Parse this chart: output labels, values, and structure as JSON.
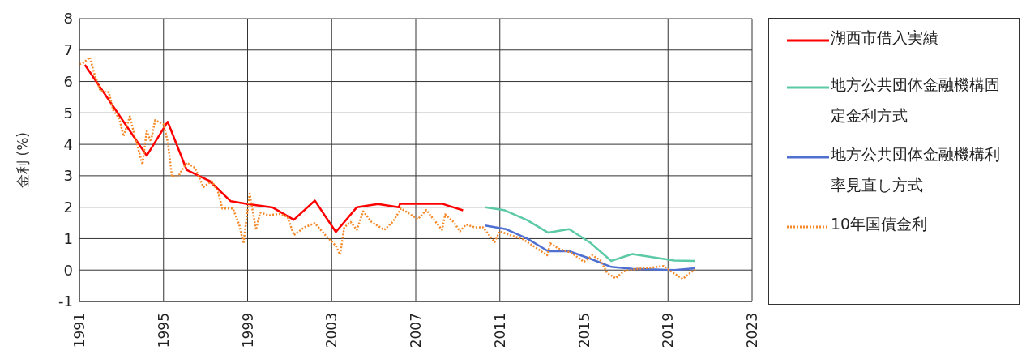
{
  "chart_data": {
    "type": "line",
    "ylabel": "金利 (%)",
    "xlim": [
      1991,
      2023
    ],
    "xticks": [
      1991,
      1995,
      1999,
      2003,
      2007,
      2011,
      2015,
      2019,
      2023
    ],
    "ylim": [
      -1,
      8
    ],
    "yticks": [
      -1,
      0,
      1,
      2,
      3,
      4,
      5,
      6,
      7,
      8
    ],
    "grid": true,
    "legend": "right",
    "marker": "none",
    "series": [
      {
        "name": "湖西市借入実績",
        "color": "#ff0000",
        "line_style": "solid",
        "x": [
          1991.26,
          1994.2,
          1995.2,
          1996.1,
          1997.2,
          1998.2,
          1999.0,
          2000.2,
          2001.2,
          2002.2,
          2003.2,
          2004.2,
          2005.2,
          2006.2,
          2006.25,
          2008.25,
          2009.25
        ],
        "values": [
          6.53,
          3.64,
          4.72,
          3.19,
          2.83,
          2.19,
          2.1,
          1.99,
          1.6,
          2.21,
          1.21,
          2.0,
          2.1,
          2.0,
          2.11,
          2.11,
          1.9
        ]
      },
      {
        "name": "地方公共団体金融機構固定金利方式",
        "color": "#5cc9a7",
        "line_style": "solid",
        "x": [
          2010.3,
          2011.2,
          2012.3,
          2013.3,
          2014.3,
          2015.3,
          2016.3,
          2017.3,
          2019.3,
          2020.3
        ],
        "values": [
          2.0,
          1.91,
          1.59,
          1.19,
          1.3,
          0.87,
          0.29,
          0.51,
          0.3,
          0.29
        ]
      },
      {
        "name": "地方公共団体金融機構利率見直し方式",
        "color": "#4f6fd1",
        "line_style": "solid",
        "x": [
          2010.3,
          2011.3,
          2012.3,
          2013.3,
          2014.3,
          2015.3,
          2016.3,
          2017.3,
          2019.3,
          2020.3
        ],
        "values": [
          1.42,
          1.3,
          1.0,
          0.6,
          0.6,
          0.36,
          0.1,
          0.04,
          0.0,
          0.06
        ]
      },
      {
        "name": "10年国債金利",
        "color": "#f58a2a",
        "line_style": "dotted",
        "x": [
          1991.0,
          1991.2,
          1991.5,
          1991.7,
          1992.0,
          1992.4,
          1992.6,
          1992.9,
          1993.1,
          1993.4,
          1993.6,
          1994.0,
          1994.2,
          1994.4,
          1994.6,
          1995.0,
          1995.2,
          1995.4,
          1995.7,
          1996.1,
          1996.5,
          1996.9,
          1997.3,
          1997.6,
          1997.8,
          1998.3,
          1998.6,
          1998.8,
          1999.1,
          1999.4,
          1999.6,
          2000.0,
          2000.5,
          2000.9,
          2001.2,
          2001.7,
          2002.2,
          2002.7,
          2003.2,
          2003.4,
          2003.6,
          2003.9,
          2004.2,
          2004.5,
          2004.9,
          2005.5,
          2005.9,
          2006.3,
          2006.7,
          2007.1,
          2007.5,
          2007.9,
          2008.25,
          2008.4,
          2008.8,
          2009.1,
          2009.4,
          2009.8,
          2010.2,
          2010.75,
          2011.0,
          2011.5,
          2012.1,
          2012.7,
          2013.25,
          2013.4,
          2013.8,
          2014.4,
          2015.0,
          2015.4,
          2015.8,
          2016.1,
          2016.5,
          2016.9,
          2017.5,
          2018.1,
          2018.8,
          2019.2,
          2019.7,
          2020.1,
          2020.3
        ],
        "values": [
          6.55,
          6.6,
          6.77,
          6.26,
          5.7,
          5.66,
          5.1,
          4.81,
          4.26,
          4.89,
          4.34,
          3.36,
          4.43,
          4.09,
          4.77,
          4.64,
          4.09,
          2.98,
          2.98,
          3.42,
          3.25,
          2.64,
          2.83,
          2.47,
          1.96,
          1.96,
          1.45,
          0.85,
          2.43,
          1.28,
          1.83,
          1.74,
          1.79,
          1.7,
          1.11,
          1.36,
          1.49,
          1.11,
          0.77,
          0.49,
          1.36,
          1.53,
          1.28,
          1.87,
          1.53,
          1.28,
          1.53,
          1.96,
          1.79,
          1.62,
          1.91,
          1.57,
          1.28,
          1.77,
          1.53,
          1.23,
          1.45,
          1.36,
          1.36,
          0.89,
          1.23,
          1.11,
          0.98,
          0.72,
          0.47,
          0.85,
          0.68,
          0.55,
          0.26,
          0.47,
          0.3,
          -0.09,
          -0.26,
          -0.04,
          0.04,
          0.07,
          0.13,
          -0.07,
          -0.28,
          -0.07,
          0.02
        ]
      }
    ]
  }
}
